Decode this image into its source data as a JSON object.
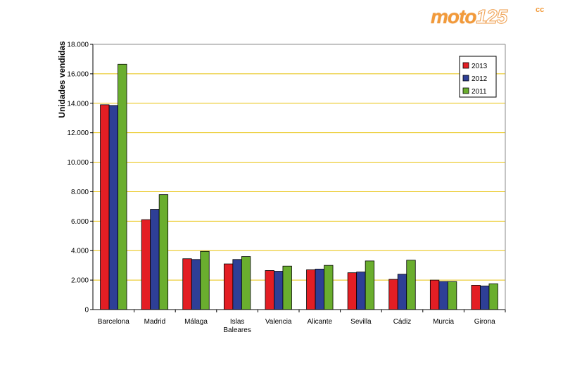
{
  "logo": {
    "text_a": "moto",
    "text_b": "125",
    "text_c": "cc"
  },
  "chart_data": {
    "type": "bar",
    "ylabel": "Unidades vendidas",
    "ylim": [
      0,
      18000
    ],
    "yticks": [
      "0",
      "2.000",
      "4.000",
      "6.000",
      "8.000",
      "10.000",
      "12.000",
      "14.000",
      "16.000",
      "18.000"
    ],
    "categories": [
      "Barcelona",
      "Madrid",
      "Málaga",
      "Islas Baleares",
      "Valencia",
      "Alicante",
      "Sevilla",
      "Cádiz",
      "Murcia",
      "Girona"
    ],
    "category_lines": [
      [
        "Barcelona"
      ],
      [
        "Madrid"
      ],
      [
        "Málaga"
      ],
      [
        "Islas",
        "Baleares"
      ],
      [
        "Valencia"
      ],
      [
        "Alicante"
      ],
      [
        "Sevilla"
      ],
      [
        "Cádiz"
      ],
      [
        "Murcia"
      ],
      [
        "Girona"
      ]
    ],
    "series": [
      {
        "name": "2013",
        "color": "#e31e24",
        "values": [
          13900,
          6100,
          3450,
          3100,
          2650,
          2700,
          2500,
          2050,
          2000,
          1650
        ]
      },
      {
        "name": "2012",
        "color": "#2e3f96",
        "values": [
          13850,
          6800,
          3400,
          3400,
          2600,
          2750,
          2550,
          2400,
          1900,
          1600
        ]
      },
      {
        "name": "2011",
        "color": "#6aae2e",
        "values": [
          16650,
          7800,
          3950,
          3600,
          2950,
          3000,
          3300,
          3350,
          1900,
          1750
        ]
      }
    ],
    "grid": true,
    "grid_color": "#e8c20a",
    "legend_position": "top-right"
  }
}
